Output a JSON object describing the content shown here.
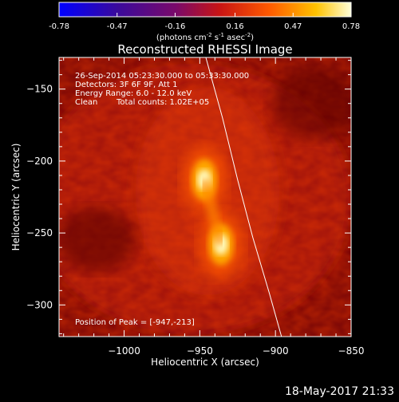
{
  "colorbar": {
    "tick_labels": [
      "-0.78",
      "-0.47",
      "-0.16",
      "0.16",
      "0.47",
      "0.78"
    ],
    "min": -0.78,
    "max": 0.78,
    "units_main": "(photons cm",
    "units_sup1": "-2",
    "units_mid1": " s",
    "units_sup2": "-1",
    "units_mid2": " asec",
    "units_sup3": "-2",
    "units_end": ")"
  },
  "title": "Reconstructed RHESSI Image",
  "annotations": {
    "time_range": "26-Sep-2014 05:23:30.000 to 05:33:30.000",
    "detectors": "Detectors: 3F 6F 9F, Att 1",
    "energy_range": "Energy Range: 6.0 - 12.0 keV",
    "method": "Clean",
    "total_counts": "Total counts: 1.02E+05",
    "peak_position": "Position of Peak = [-947,-213]"
  },
  "axes": {
    "xlabel": "Heliocentric X (arcsec)",
    "ylabel": "Heliocentric Y (arcsec)",
    "xlim": [
      -1043,
      -850
    ],
    "ylim": [
      -322,
      -128
    ],
    "x_ticks": [
      -1000,
      -950,
      -900,
      -850
    ],
    "x_tick_labels": [
      "−1000",
      "−950",
      "−900",
      "−850"
    ],
    "y_ticks": [
      -150,
      -200,
      -250,
      -300
    ],
    "y_tick_labels": [
      "−150",
      "−200",
      "−250",
      "−300"
    ]
  },
  "sources": [
    {
      "x": -947,
      "y": -213,
      "peak": 0.78
    },
    {
      "x": -936,
      "y": -258,
      "peak": 0.7
    }
  ],
  "solar_limb": [
    [
      -946,
      -128
    ],
    [
      -935,
      -170
    ],
    [
      -925,
      -213
    ],
    [
      -915,
      -253
    ],
    [
      -904,
      -292
    ],
    [
      -896,
      -322
    ]
  ],
  "timestamp": "18-May-2017 21:33"
}
